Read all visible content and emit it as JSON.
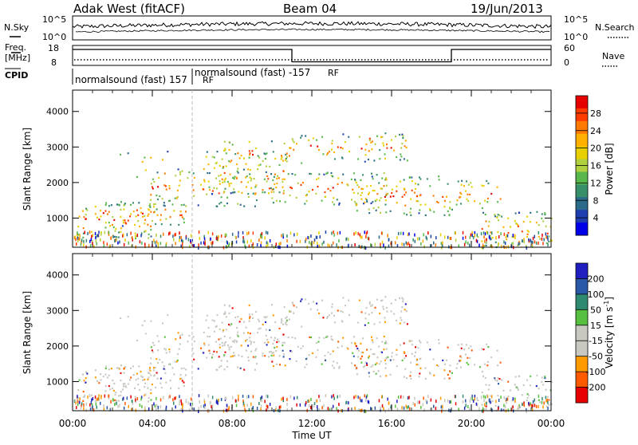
{
  "header": {
    "station": "Adak West (fitACF)",
    "beam": "Beam 04",
    "date": "19/Jun/2013"
  },
  "summary": {
    "nsky_label": "N.Sky",
    "nsearch_label": "N.Search",
    "freq_label_1": "Freq.",
    "freq_label_2": "[MHz]",
    "nave_label": "Nave",
    "cpid_label": "CPID",
    "nsky_ticks": [
      "10^5",
      "10^0"
    ],
    "nsearch_ticks": [
      "10^5",
      "10^0"
    ],
    "freq_ticks": [
      "18",
      "8"
    ],
    "nave_ticks": [
      "60",
      "0"
    ],
    "cpid_segments": [
      {
        "label": "normalsound (fast) 157",
        "suffix": "RF",
        "start_hour": 0,
        "end_hour": 6
      },
      {
        "label": "normalsound (fast) -157",
        "suffix": "RF",
        "start_hour": 6,
        "end_hour": 24
      }
    ],
    "freq_steps": [
      {
        "start_hour": 0,
        "end_hour": 11,
        "level": 0.72
      },
      {
        "start_hour": 11,
        "end_hour": 19,
        "level": 0.1
      },
      {
        "start_hour": 19,
        "end_hour": 24,
        "level": 0.72
      }
    ]
  },
  "chart_data": [
    {
      "type": "heatmap",
      "name_key": "power",
      "ylabel": "Slant Range [km]",
      "xlabel": "Time UT",
      "yticks": [
        1000,
        2000,
        3000,
        4000
      ],
      "ylim": [
        180,
        4600
      ],
      "xlim": [
        0,
        24
      ],
      "xticks": [
        "00:00",
        "04:00",
        "08:00",
        "12:00",
        "16:00",
        "20:00",
        "00:00"
      ],
      "colorbar_label": "Power [dB]",
      "colorbar_ticks": [
        "28",
        "24",
        "20",
        "16",
        "12",
        "8",
        "4"
      ],
      "colorbar_colors": [
        "#e60000",
        "#ff3b00",
        "#ff7a00",
        "#ffb000",
        "#e8d000",
        "#b0d040",
        "#58b84c",
        "#38906a",
        "#2b6a88",
        "#1f3fb0",
        "#0000e8"
      ]
    },
    {
      "type": "heatmap",
      "name_key": "velocity",
      "ylabel": "Slant Range [km]",
      "xlabel": "Time UT",
      "yticks": [
        1000,
        2000,
        3000,
        4000
      ],
      "ylim": [
        180,
        4600
      ],
      "xlim": [
        0,
        24
      ],
      "xticks": [
        "00:00",
        "04:00",
        "08:00",
        "12:00",
        "16:00",
        "20:00",
        "00:00"
      ],
      "colorbar_label": "Velocity [m s",
      "colorbar_label_sup": "-1",
      "colorbar_label_end": "]",
      "colorbar_ticks": [
        "200",
        "100",
        "50",
        "15",
        "-15",
        "-50",
        "-100",
        "-200"
      ],
      "colorbar_colors": [
        "#2020c0",
        "#2a58a8",
        "#2e8a70",
        "#58c040",
        "#c8c8c0",
        "#c8c8c0",
        "#ff9a00",
        "#ff5a00",
        "#e60000"
      ]
    }
  ],
  "echo_bands": [
    {
      "t0": 0.2,
      "t1": 4.2,
      "r0": 450,
      "r1": 1500,
      "p": 0.8
    },
    {
      "t0": 1.5,
      "t1": 5.8,
      "r0": 800,
      "r1": 1500,
      "p": 0.8
    },
    {
      "t0": 3.8,
      "t1": 9.2,
      "r0": 1350,
      "r1": 2400,
      "p": 0.75
    },
    {
      "t0": 6.5,
      "t1": 10.8,
      "r0": 1700,
      "r1": 2900,
      "p": 0.7
    },
    {
      "t0": 7.5,
      "t1": 11.5,
      "r0": 2300,
      "r1": 3300,
      "p": 0.5
    },
    {
      "t0": 9.5,
      "t1": 15.8,
      "r0": 1400,
      "r1": 2300,
      "p": 0.85
    },
    {
      "t0": 10.8,
      "t1": 16.8,
      "r0": 2600,
      "r1": 3400,
      "p": 0.6
    },
    {
      "t0": 14.0,
      "t1": 19.0,
      "r0": 1100,
      "r1": 2200,
      "p": 0.8
    },
    {
      "t0": 19.0,
      "t1": 21.5,
      "r0": 1300,
      "r1": 2100,
      "p": 0.75
    },
    {
      "t0": 20.2,
      "t1": 24.0,
      "r0": 200,
      "r1": 1200,
      "p": 0.9
    },
    {
      "t0": 2.0,
      "t1": 5.0,
      "r0": 2000,
      "r1": 2900,
      "p": 0.2
    },
    {
      "t0": 14.5,
      "t1": 16.5,
      "r0": 2800,
      "r1": 3500,
      "p": 0.4
    }
  ]
}
